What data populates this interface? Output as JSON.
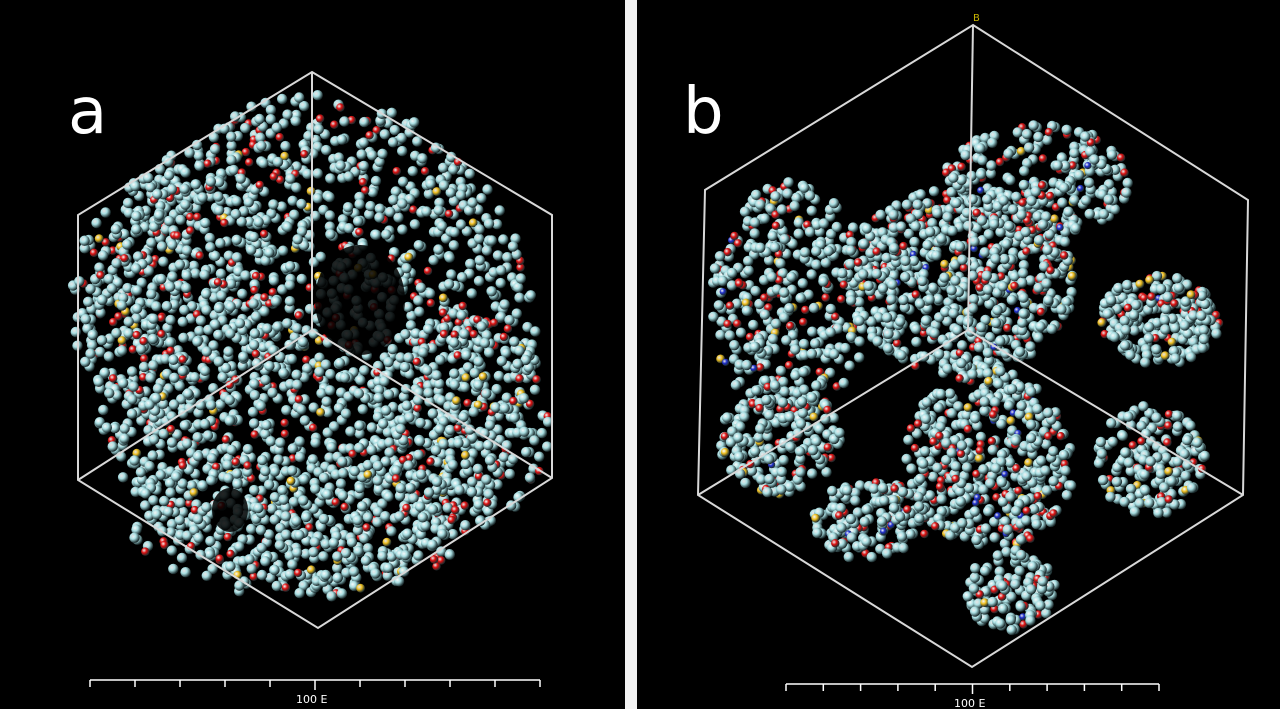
{
  "panels": [
    {
      "letter": "a",
      "scale_label": "100 E"
    },
    {
      "letter": "b",
      "scale_label": "100 E",
      "axis_label": "B"
    }
  ],
  "colors": {
    "background": "#000000",
    "separator": "#f2f2f2",
    "box_edges": "#d8d8d8",
    "atom_cyan": "#a9dfe3",
    "atom_red": "#e01010",
    "atom_yellow": "#f0c020",
    "atom_blue": "#2030d0"
  }
}
